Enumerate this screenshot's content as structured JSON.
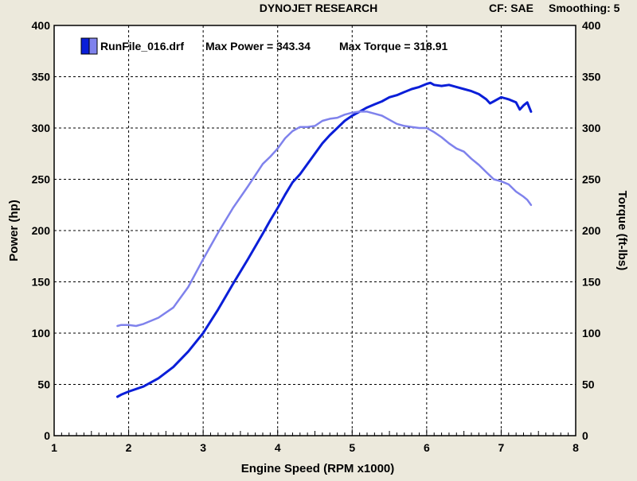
{
  "header": {
    "title": "DYNOJET RESEARCH",
    "correction": "CF: SAE",
    "smoothing": "Smoothing: 5"
  },
  "colors": {
    "background": "#ece9dc",
    "plot_background": "#ffffff",
    "power": "#0a1ed8",
    "torque": "#7f82ec",
    "grid": "#000000"
  },
  "chart_data": {
    "type": "line",
    "title": "DYNOJET RESEARCH",
    "xlabel": "Engine Speed (RPM x1000)",
    "ylabel": "Power (hp)",
    "y2label": "Torque (ft-lbs)",
    "xlim": [
      1,
      8
    ],
    "ylim": [
      0,
      400
    ],
    "y2lim": [
      0,
      400
    ],
    "x_ticks": [
      "1",
      "2",
      "3",
      "4",
      "5",
      "6",
      "7",
      "8"
    ],
    "y_ticks": [
      "0",
      "50",
      "100",
      "150",
      "200",
      "250",
      "300",
      "350",
      "400"
    ],
    "grid": true,
    "grid_style": "dashed",
    "legend_position": "top-left",
    "legend": {
      "file": "RunFile_016.drf",
      "max_power_text": "Max Power = 343.34",
      "max_torque_text": "Max Torque = 318.91"
    },
    "series": [
      {
        "name": "Power",
        "axis": "left",
        "color": "#0a1ed8",
        "x": [
          1.85,
          1.9,
          2.0,
          2.2,
          2.4,
          2.6,
          2.8,
          3.0,
          3.2,
          3.4,
          3.6,
          3.8,
          3.9,
          4.0,
          4.1,
          4.2,
          4.3,
          4.4,
          4.5,
          4.6,
          4.7,
          4.8,
          4.9,
          5.0,
          5.1,
          5.2,
          5.3,
          5.4,
          5.5,
          5.6,
          5.7,
          5.8,
          5.9,
          6.0,
          6.05,
          6.1,
          6.2,
          6.3,
          6.4,
          6.5,
          6.6,
          6.7,
          6.8,
          6.85,
          6.9,
          7.0,
          7.1,
          7.2,
          7.25,
          7.3,
          7.35,
          7.4
        ],
        "y": [
          38,
          40,
          43,
          48,
          56,
          67,
          82,
          100,
          123,
          148,
          172,
          197,
          210,
          222,
          235,
          247,
          255,
          265,
          275,
          285,
          293,
          300,
          307,
          312,
          316,
          320,
          323,
          326,
          330,
          332,
          335,
          338,
          340,
          343,
          344,
          342,
          341,
          342,
          340,
          338,
          336,
          333,
          328,
          324,
          326,
          330,
          328,
          325,
          318,
          322,
          325,
          316
        ]
      },
      {
        "name": "Torque",
        "axis": "right",
        "color": "#7f82ec",
        "x": [
          1.85,
          1.9,
          2.0,
          2.1,
          2.2,
          2.4,
          2.6,
          2.8,
          3.0,
          3.2,
          3.4,
          3.6,
          3.8,
          3.9,
          4.0,
          4.1,
          4.2,
          4.3,
          4.4,
          4.5,
          4.6,
          4.7,
          4.8,
          4.9,
          5.0,
          5.1,
          5.2,
          5.3,
          5.4,
          5.5,
          5.6,
          5.7,
          5.8,
          5.9,
          6.0,
          6.1,
          6.2,
          6.3,
          6.4,
          6.5,
          6.6,
          6.7,
          6.8,
          6.9,
          7.0,
          7.1,
          7.2,
          7.3,
          7.35,
          7.4
        ],
        "y": [
          107,
          108,
          108,
          107,
          109,
          115,
          125,
          145,
          172,
          198,
          222,
          243,
          265,
          272,
          280,
          290,
          297,
          301,
          301,
          302,
          307,
          309,
          310,
          313,
          315,
          316,
          316,
          314,
          312,
          308,
          304,
          302,
          301,
          300,
          300,
          296,
          291,
          285,
          280,
          277,
          270,
          264,
          257,
          250,
          248,
          245,
          238,
          233,
          230,
          225
        ]
      }
    ]
  }
}
